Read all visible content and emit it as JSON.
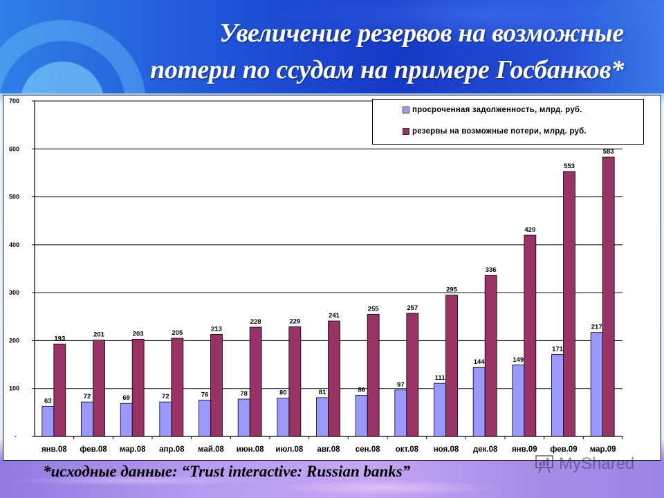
{
  "slide": {
    "title_line1": "Увеличение резервов на возможные",
    "title_line2": "потери по ссудам на примере Госбанков*",
    "footnote": "*исходные данные: “Trust interactive: Russian banks”",
    "watermark": "MyShared"
  },
  "legend": {
    "items": [
      {
        "label": "просроченная задолженность, млрд. руб.",
        "color": "#9999ff"
      },
      {
        "label": "резервы на возможные потери, млрд. руб.",
        "color": "#993366"
      }
    ]
  },
  "chart_data": {
    "type": "bar",
    "title": "Увеличение резервов на возможные потери по ссудам на примере Госбанков*",
    "xlabel": "",
    "ylabel": "",
    "ylim": [
      0,
      700
    ],
    "yticks": [
      "-",
      "100",
      "200",
      "300",
      "400",
      "500",
      "600",
      "700"
    ],
    "grid": true,
    "legend_position": "top-right",
    "categories": [
      "янв.08",
      "фев.08",
      "мар.08",
      "апр.08",
      "май.08",
      "июн.08",
      "июл.08",
      "авг.08",
      "сен.08",
      "окт.08",
      "ноя.08",
      "дек.08",
      "янв.09",
      "фев.09",
      "мар.09"
    ],
    "series": [
      {
        "name": "просроченная задолженность, млрд. руб.",
        "color": "#9999ff",
        "values": [
          63,
          72,
          69,
          72,
          76,
          78,
          80,
          81,
          86,
          97,
          111,
          144,
          149,
          171,
          217
        ]
      },
      {
        "name": "резервы на возможные потери, млрд. руб.",
        "color": "#993366",
        "values": [
          193,
          201,
          203,
          205,
          213,
          228,
          229,
          241,
          255,
          257,
          295,
          336,
          420,
          553,
          583
        ]
      }
    ],
    "data_labels": true
  }
}
